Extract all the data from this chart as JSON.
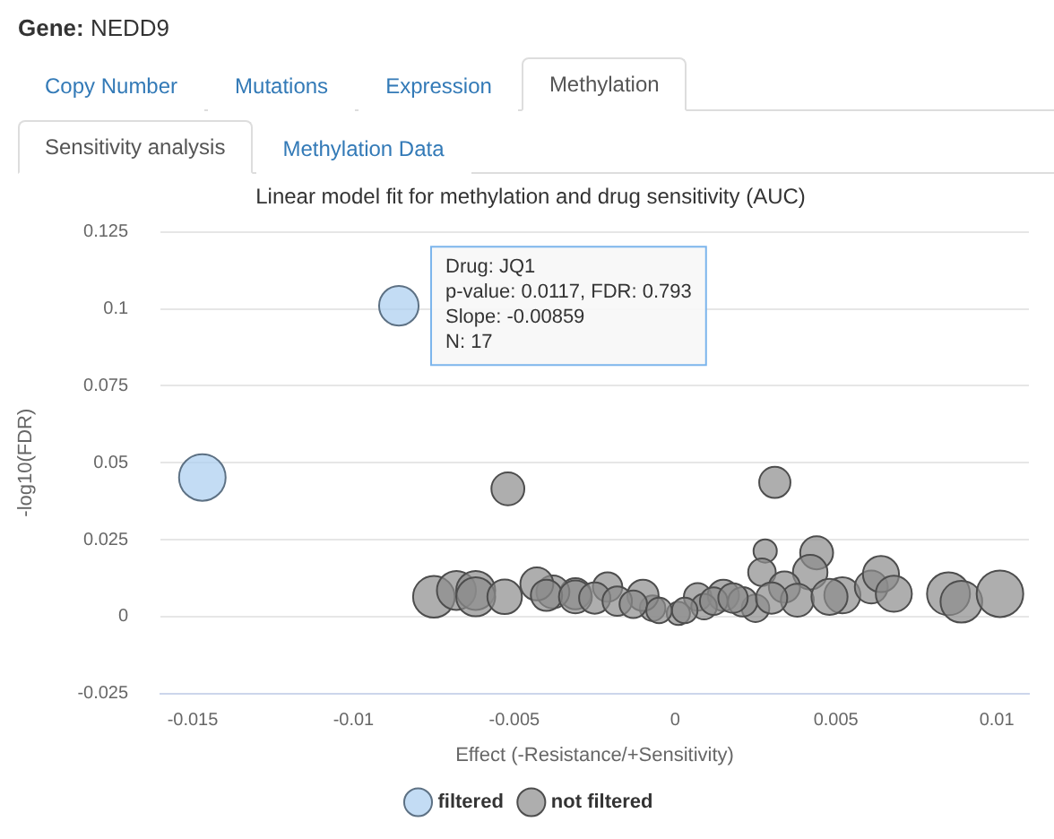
{
  "chart_data": {
    "type": "bubble",
    "title": "Linear model fit for methylation and drug sensitivity (AUC)",
    "xlabel": "Effect (-Resistance/+Sensitivity)",
    "ylabel": "-log10(FDR)",
    "xlim": [
      -0.016,
      0.011
    ],
    "xticks": [
      -0.015,
      -0.01,
      -0.005,
      0,
      0.005,
      0.01
    ],
    "ylim": [
      -0.025,
      0.125
    ],
    "yticks": [
      -0.025,
      0,
      0.025,
      0.05,
      0.075,
      0.1,
      0.125
    ],
    "grid": "y",
    "legend": "bottom",
    "marker": "circle",
    "annotations": [
      "Gene: NEDD9",
      "Copy Number",
      "Mutations",
      "Expression",
      "Methylation",
      "Sensitivity analysis",
      "Methylation Data",
      {
        "text": "Drug: JQ1\np-value: 0.0117, FDR: 0.793\nSlope: -0.00859\nN: 17",
        "x": -0.00859,
        "y": 0.101
      }
    ],
    "series": [
      {
        "name": "filtered",
        "color": "#a9cdf0",
        "x": [
          -0.0147,
          -0.00859
        ],
        "values": [
          0.0452,
          0.101
        ],
        "sizes": [
          1,
          0.72
        ]
      },
      {
        "name": "not filtered",
        "color": "#8c8c8c",
        "x": [
          -0.0052,
          0.0031,
          0.0028,
          0.0027,
          0.0044,
          0.0042,
          0.0034,
          0.0052,
          0.0061,
          0.0064,
          0.0068,
          0.0085,
          0.0089,
          0.0101,
          0.0007,
          0.0001,
          -0.0007,
          -0.0021,
          -0.001,
          0.0015,
          0.0025,
          0.0038,
          0.0048,
          0.0021,
          0.0009,
          -0.0031,
          -0.0038,
          -0.0075,
          -0.0068,
          -0.0062,
          -0.0062,
          -0.0053,
          -0.0043,
          -0.004,
          -0.0031,
          -0.0025,
          -0.0018,
          -0.0013,
          -0.0005,
          0.0003,
          0.0012,
          0.0018,
          0.003
        ],
        "values": [
          0.0415,
          0.0436,
          0.0213,
          0.0144,
          0.0207,
          0.0144,
          0.0096,
          0.0069,
          0.0096,
          0.0138,
          0.0074,
          0.0074,
          0.0048,
          0.0074,
          0.0064,
          0.001,
          0.0027,
          0.0096,
          0.0069,
          0.0069,
          0.0027,
          0.0053,
          0.0064,
          0.0048,
          0.0032,
          0.0074,
          0.008,
          0.0064,
          0.0085,
          0.0085,
          0.0064,
          0.0064,
          0.0106,
          0.0069,
          0.0064,
          0.006,
          0.005,
          0.004,
          0.002,
          0.002,
          0.005,
          0.006,
          0.006
        ],
        "sizes": [
          0.5,
          0.45,
          0.25,
          0.35,
          0.5,
          0.55,
          0.45,
          0.6,
          0.5,
          0.6,
          0.6,
          0.85,
          0.8,
          1,
          0.35,
          0.25,
          0.3,
          0.4,
          0.45,
          0.45,
          0.35,
          0.5,
          0.6,
          0.4,
          0.3,
          0.45,
          0.5,
          0.8,
          0.7,
          0.7,
          0.7,
          0.55,
          0.5,
          0.45,
          0.5,
          0.45,
          0.4,
          0.35,
          0.3,
          0.3,
          0.35,
          0.4,
          0.45
        ]
      }
    ]
  }
}
